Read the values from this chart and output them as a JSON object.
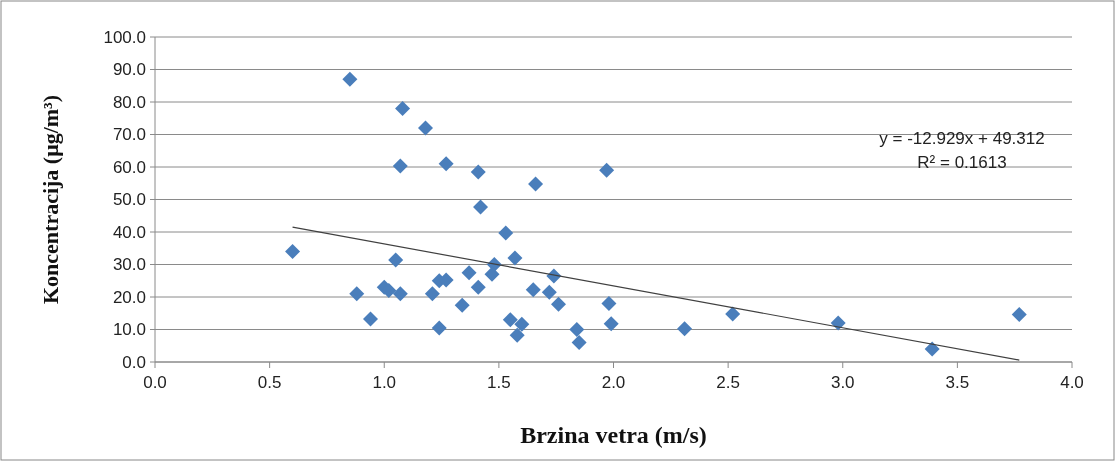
{
  "chart_data": {
    "type": "scatter",
    "xlabel": "Brzina vetra (m/s)",
    "ylabel": "Koncentracija (μg/m³)",
    "xlim": [
      0,
      4
    ],
    "ylim": [
      0,
      100
    ],
    "xticks": [
      {
        "value": 0,
        "label": "0.0"
      },
      {
        "value": 0.5,
        "label": "0.5"
      },
      {
        "value": 1,
        "label": "1.0"
      },
      {
        "value": 1.5,
        "label": "1.5"
      },
      {
        "value": 2,
        "label": "2.0"
      },
      {
        "value": 2.5,
        "label": "2.5"
      },
      {
        "value": 3,
        "label": "3.0"
      },
      {
        "value": 3.5,
        "label": "3.5"
      },
      {
        "value": 4,
        "label": "4.0"
      }
    ],
    "yticks": [
      {
        "value": 0,
        "label": "0.0"
      },
      {
        "value": 10,
        "label": "10.0"
      },
      {
        "value": 20,
        "label": "20.0"
      },
      {
        "value": 30,
        "label": "30.0"
      },
      {
        "value": 40,
        "label": "40.0"
      },
      {
        "value": 50,
        "label": "50.0"
      },
      {
        "value": 60,
        "label": "60.0"
      },
      {
        "value": 70,
        "label": "70.0"
      },
      {
        "value": 80,
        "label": "80.0"
      },
      {
        "value": 90,
        "label": "90.0"
      },
      {
        "value": 100,
        "label": "100.0"
      }
    ],
    "grid": "y",
    "series": [
      {
        "marker": "diamond",
        "color": "#4a7ebb",
        "x": [
          0.85,
          1.08,
          1.18,
          1.07,
          1.27,
          1.41,
          1.66,
          1.97,
          1.42,
          1.53,
          0.6,
          1.05,
          1.57,
          1.37,
          1.48,
          1.47,
          1.74,
          0.88,
          1.0,
          1.02,
          1.07,
          1.21,
          1.24,
          1.27,
          1.41,
          1.65,
          1.72,
          1.76,
          1.98,
          0.94,
          1.24,
          1.34,
          1.55,
          1.6,
          1.58,
          1.84,
          1.85,
          1.99,
          2.31,
          2.52,
          2.98,
          3.39,
          3.77
        ],
        "values": [
          87,
          78,
          72,
          60.3,
          61,
          58.5,
          54.8,
          59,
          47.7,
          39.7,
          34,
          31.4,
          32,
          27.5,
          30,
          27,
          26.5,
          21,
          23,
          22,
          21,
          21,
          25,
          25.2,
          23,
          22.2,
          21.5,
          17.8,
          18,
          13.2,
          10.5,
          17.5,
          13,
          11.6,
          8.2,
          10,
          6,
          11.8,
          10.2,
          14.8,
          12,
          4,
          14.6
        ]
      },
      {
        "type": "line",
        "color": "#404040",
        "x": [
          0.6,
          3.77
        ],
        "values": [
          41.5,
          0.6
        ]
      }
    ],
    "annotations": [
      "y = -12.929x + 49.312",
      "R² = 0.1613"
    ]
  }
}
